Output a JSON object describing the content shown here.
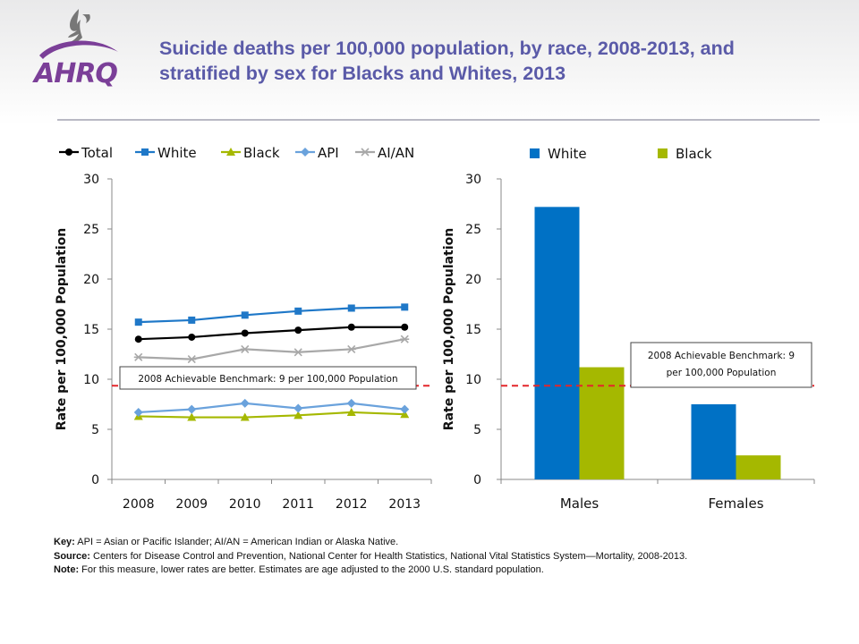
{
  "title": "Suicide deaths per 100,000 population, by race, 2008-2013, and stratified by sex for Blacks and Whites, 2013",
  "logo": {
    "text": "AHRQ",
    "colors": {
      "purple": "#7b3f98",
      "gray": "#777777"
    }
  },
  "footer": {
    "key_label": "Key:",
    "key_text": "API = Asian or Pacific Islander; AI/AN = American Indian or Alaska Native.",
    "source_label": "Source:",
    "source_text": "Centers for Disease Control and Prevention, National Center for Health Statistics, National Vital Statistics System—Mortality, 2008-2013.",
    "note_label": "Note:",
    "note_text": "For this measure, lower rates are better. Estimates are age adjusted to the 2000 U.S. standard population."
  },
  "chart_data": [
    {
      "type": "line",
      "ylabel": "Rate per 100,000 Population",
      "xlabel": "",
      "ylim": [
        0,
        30
      ],
      "yticks": [
        0,
        5,
        10,
        15,
        20,
        25,
        30
      ],
      "x": [
        "2008",
        "2009",
        "2010",
        "2011",
        "2012",
        "2013"
      ],
      "legend": "top",
      "grid": false,
      "series": [
        {
          "name": "Total",
          "values": [
            14.0,
            14.2,
            14.6,
            14.9,
            15.2,
            15.2
          ],
          "color": "#000000",
          "marker": "circle"
        },
        {
          "name": "White",
          "values": [
            15.7,
            15.9,
            16.4,
            16.8,
            17.1,
            17.2
          ],
          "color": "#1f78c8",
          "marker": "square"
        },
        {
          "name": "Black",
          "values": [
            6.3,
            6.2,
            6.2,
            6.4,
            6.7,
            6.5
          ],
          "color": "#a5b800",
          "marker": "triangle"
        },
        {
          "name": "API",
          "values": [
            6.7,
            7.0,
            7.6,
            7.1,
            7.6,
            7.0
          ],
          "color": "#6aa2dc",
          "marker": "diamond"
        },
        {
          "name": "AI/AN",
          "values": [
            12.2,
            12.0,
            13.0,
            12.7,
            13.0,
            14.0
          ],
          "color": "#a8a8a8",
          "marker": "star"
        }
      ],
      "benchmark": {
        "value": 9,
        "label": "2008 Achievable Benchmark: 9 per 100,000 Population",
        "color": "#e3262a"
      }
    },
    {
      "type": "bar",
      "ylabel": "Rate per 100,000 Population",
      "xlabel": "",
      "ylim": [
        0,
        30
      ],
      "yticks": [
        0,
        5,
        10,
        15,
        20,
        25,
        30
      ],
      "categories": [
        "Males",
        "Females"
      ],
      "legend": "top",
      "grid": false,
      "series": [
        {
          "name": "White",
          "values": [
            27.2,
            7.5
          ],
          "color": "#0071c5"
        },
        {
          "name": "Black",
          "values": [
            11.2,
            2.4
          ],
          "color": "#a5b800"
        }
      ],
      "benchmark": {
        "value": 9,
        "label": "2008 Achievable Benchmark: 9 per 100,000 Population",
        "label_lines": [
          "2008 Achievable Benchmark: 9",
          "per 100,000 Population"
        ],
        "color": "#e3262a"
      }
    }
  ]
}
